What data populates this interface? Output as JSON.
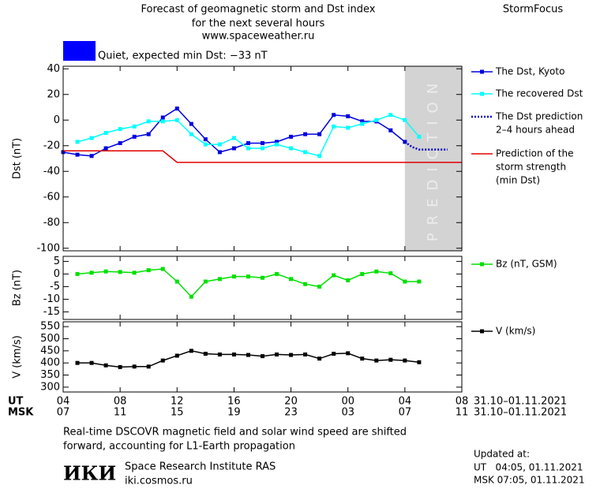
{
  "header": {
    "title": [
      "Forecast of geomagnetic storm and Dst index",
      "for the next several hours",
      "www.spaceweather.ru"
    ],
    "brand": "StormFocus",
    "status": "Quiet, expected min Dst: −33 nT",
    "status_color": "#0000ff"
  },
  "chart_data": [
    {
      "type": "line",
      "ylabel": "Dst (nT)",
      "xlim": [
        0,
        28
      ],
      "xticks": [
        0,
        4,
        8,
        12,
        16,
        20,
        24,
        28
      ],
      "ylim": [
        -102,
        42
      ],
      "yticks": [
        40,
        20,
        0,
        -20,
        -40,
        -60,
        -80,
        -100
      ],
      "shaded": {
        "x": [
          24,
          28
        ],
        "label": "PREDICTION",
        "color": "#d3d3d3"
      },
      "series": [
        {
          "name": [
            "The Dst, Kyoto"
          ],
          "color": "#0000e0",
          "style": "solid",
          "marker": "square",
          "x": [
            0,
            1,
            2,
            3,
            4,
            5,
            6,
            7,
            8,
            9,
            10,
            11,
            12,
            13,
            14,
            15,
            16,
            17,
            18,
            19,
            20,
            21,
            22,
            23,
            24
          ],
          "values": [
            -25,
            -27,
            -28,
            -22,
            -18,
            -13,
            -11,
            2,
            9,
            -3,
            -15,
            -25,
            -22,
            -18,
            -18,
            -17,
            -13,
            -11,
            -11,
            4,
            3,
            -1,
            -1,
            -8,
            -17
          ]
        },
        {
          "name": [
            "The recovered Dst"
          ],
          "color": "#00ffff",
          "style": "solid",
          "marker": "square",
          "x": [
            1,
            2,
            3,
            4,
            5,
            6,
            7,
            8,
            9,
            10,
            11,
            12,
            13,
            14,
            15,
            16,
            17,
            18,
            19,
            20,
            21,
            22,
            23,
            24,
            25
          ],
          "values": [
            -17,
            -14,
            -10,
            -7,
            -5,
            -1,
            -1,
            0,
            -11,
            -19,
            -19,
            -14,
            -22,
            -22,
            -19,
            -22,
            -25,
            -28,
            -5,
            -6,
            -3,
            0,
            4,
            0,
            -13
          ]
        },
        {
          "name": [
            "The Dst prediction",
            "2–4 hours ahead"
          ],
          "color": "#0000c0",
          "style": "dotted",
          "marker": "none",
          "x": [
            24,
            24.5,
            25,
            25.5,
            26,
            27
          ],
          "values": [
            -17,
            -21,
            -23,
            -23,
            -23,
            -23
          ]
        },
        {
          "name": [
            "Prediction of the",
            "storm strength",
            "(min Dst)"
          ],
          "color": "#e00000",
          "style": "solid",
          "marker": "none",
          "x": [
            0,
            7,
            8,
            28
          ],
          "values": [
            -24,
            -24,
            -33,
            -33
          ]
        }
      ]
    },
    {
      "type": "line",
      "ylabel": "Bz (nT)",
      "xlim": [
        0,
        28
      ],
      "xticks": [
        0,
        4,
        8,
        12,
        16,
        20,
        24,
        28
      ],
      "ylim": [
        -18,
        7
      ],
      "yticks": [
        5,
        0,
        -5,
        -10,
        -15
      ],
      "series": [
        {
          "name": [
            "Bz (nT, GSM)"
          ],
          "color": "#00e000",
          "style": "solid",
          "marker": "square",
          "x": [
            1,
            2,
            3,
            4,
            5,
            6,
            7,
            8,
            9,
            10,
            11,
            12,
            13,
            14,
            15,
            16,
            17,
            18,
            19,
            20,
            21,
            22,
            23,
            24,
            25
          ],
          "values": [
            0,
            0.5,
            1,
            0.8,
            0.5,
            1.5,
            2,
            -3,
            -9,
            -3,
            -2,
            -1,
            -1,
            -1.5,
            0,
            -2,
            -4,
            -5,
            -0.5,
            -2.5,
            0,
            1,
            0.3,
            -3,
            -3
          ]
        }
      ]
    },
    {
      "type": "line",
      "ylabel": "V (km/s)",
      "xlim": [
        0,
        28
      ],
      "xticks": [
        {
          "value": 0,
          "label": "04"
        },
        {
          "value": 4,
          "label": "08"
        },
        {
          "value": 8,
          "label": "12"
        },
        {
          "value": 12,
          "label": "16"
        },
        {
          "value": 16,
          "label": "20"
        },
        {
          "value": 20,
          "label": "00"
        },
        {
          "value": 24,
          "label": "04"
        },
        {
          "value": 28,
          "label": "08"
        }
      ],
      "x2ticks": [
        {
          "value": 0,
          "label": "07"
        },
        {
          "value": 4,
          "label": "11"
        },
        {
          "value": 8,
          "label": "15"
        },
        {
          "value": 12,
          "label": "19"
        },
        {
          "value": 16,
          "label": "23"
        },
        {
          "value": 20,
          "label": "03"
        },
        {
          "value": 24,
          "label": "07"
        },
        {
          "value": 28,
          "label": "11"
        }
      ],
      "xtick_row_labels": [
        "UT",
        "MSK"
      ],
      "date_range": [
        "31.10–01.11.2021",
        "31.10–01.11.2021"
      ],
      "ylim": [
        280,
        570
      ],
      "yticks": [
        550,
        500,
        450,
        400,
        350,
        300
      ],
      "series": [
        {
          "name": [
            "V (km/s)"
          ],
          "color": "#000000",
          "style": "solid",
          "marker": "square",
          "x": [
            1,
            2,
            3,
            4,
            5,
            6,
            7,
            8,
            9,
            10,
            11,
            12,
            13,
            14,
            15,
            16,
            17,
            18,
            19,
            20,
            21,
            22,
            23,
            24,
            25
          ],
          "values": [
            400,
            400,
            390,
            383,
            385,
            385,
            410,
            430,
            450,
            438,
            435,
            435,
            433,
            428,
            435,
            433,
            435,
            418,
            438,
            440,
            418,
            410,
            413,
            410,
            403
          ]
        }
      ]
    }
  ],
  "footer": {
    "note": [
      "Real-time DSCOVR magnetic field and solar wind speed are shifted",
      "forward, accounting for L1-Earth propagation"
    ],
    "institute": {
      "logo": "ИКИ",
      "name": "Space Research Institute RAS",
      "url": "iki.cosmos.ru"
    },
    "updated": {
      "title": "Updated at:",
      "lines": [
        "UT   04:05, 01.11.2021",
        "MSK 07:05, 01.11.2021"
      ]
    }
  }
}
